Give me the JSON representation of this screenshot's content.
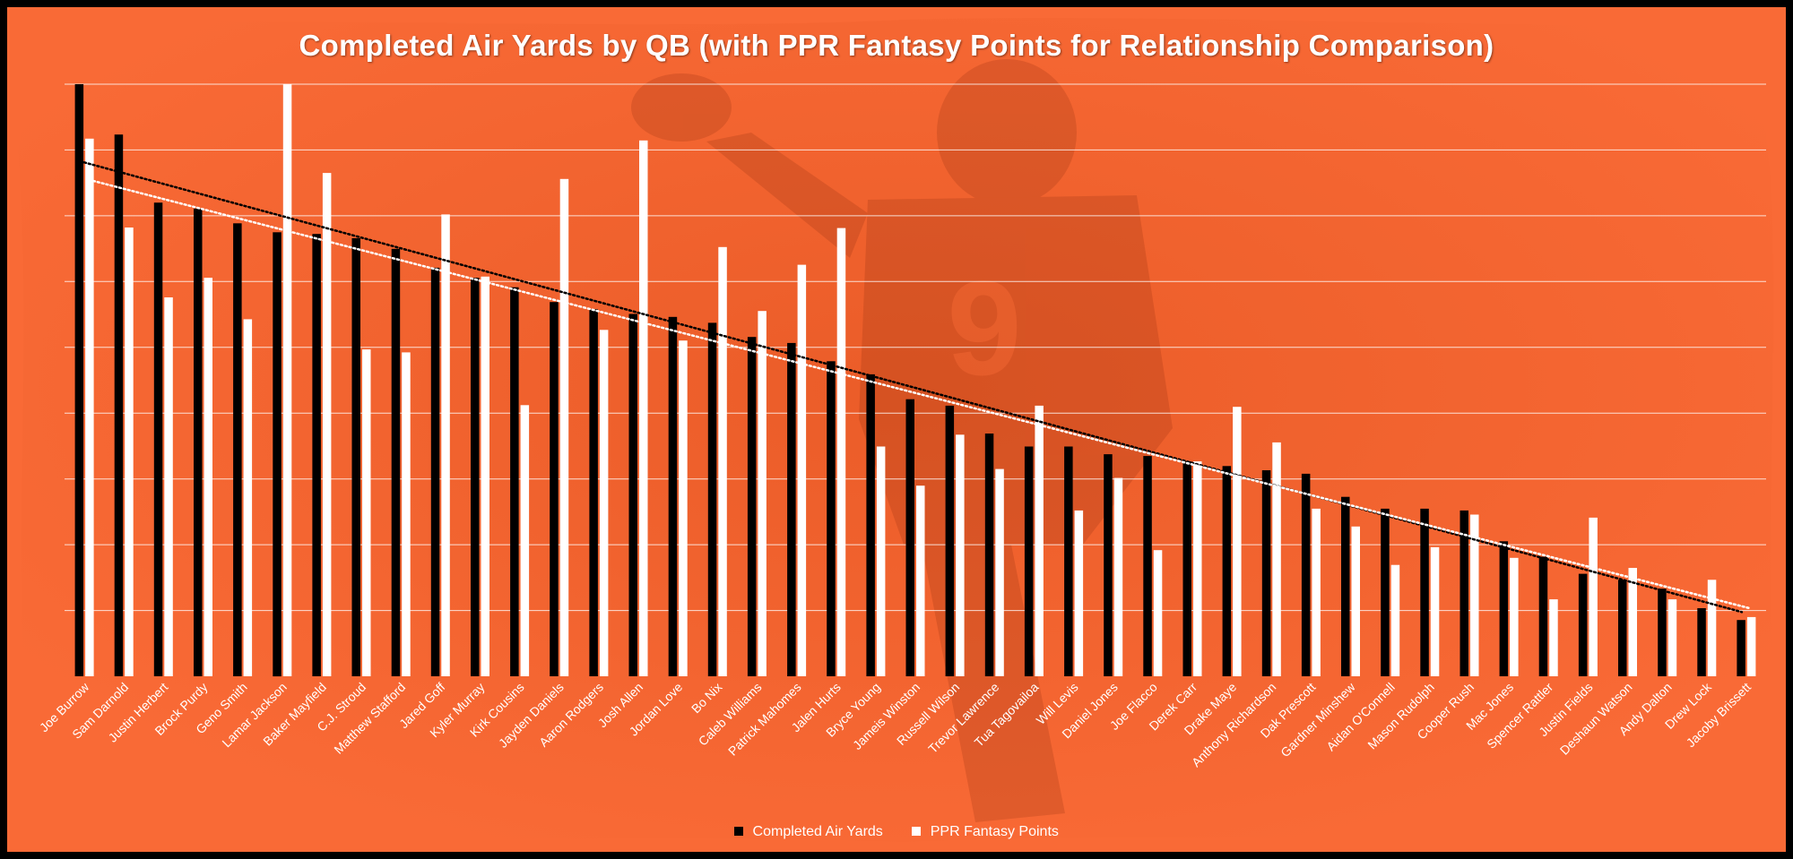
{
  "colors": {
    "background": "#f96a36",
    "frame": "#000000",
    "series_air_yards": "#000000",
    "series_ppr": "#ffffff",
    "gridline": "#ffffff",
    "text": "#ffffff"
  },
  "chart_data": {
    "type": "bar",
    "title": "Completed Air Yards by QB (with PPR Fantasy Points for Relationship Comparison)",
    "xlabel": "",
    "ylabel": "",
    "y_axis_labels_visible": false,
    "gridlines": true,
    "grid_count": 9,
    "legend_position": "bottom",
    "trendlines": "linear, dotted, one per series",
    "categories": [
      "Joe Burrow",
      "Sam Darnold",
      "Justin Herbert",
      "Brock Purdy",
      "Geno Smith",
      "Lamar Jackson",
      "Baker Mayfield",
      "C.J. Stroud",
      "Matthew Stafford",
      "Jared Goff",
      "Kyler Murray",
      "Kirk Cousins",
      "Jayden Daniels",
      "Aaron Rodgers",
      "Josh Allen",
      "Jordan Love",
      "Bo Nix",
      "Caleb Williams",
      "Patrick Mahomes",
      "Jalen Hurts",
      "Bryce Young",
      "Jameis Winston",
      "Russell Wilson",
      "Trevor Lawrence",
      "Tua Tagovailoa",
      "Will Levis",
      "Daniel Jones",
      "Joe Flacco",
      "Derek Carr",
      "Drake Maye",
      "Anthony Richardson",
      "Dak Prescott",
      "Gardner Minshew",
      "Aidan O'Connell",
      "Mason Rudolph",
      "Cooper Rush",
      "Mac Jones",
      "Spencer Rattler",
      "Justin Fields",
      "Deshaun Watson",
      "Andy Dalton",
      "Drew Lock",
      "Jacoby Brissett"
    ],
    "series": [
      {
        "name": "Completed Air Yards",
        "color": "#000000",
        "relative_values": [
          1.0,
          0.915,
          0.8,
          0.79,
          0.765,
          0.75,
          0.747,
          0.74,
          0.722,
          0.69,
          0.673,
          0.657,
          0.632,
          0.62,
          0.612,
          0.607,
          0.597,
          0.573,
          0.563,
          0.532,
          0.51,
          0.468,
          0.457,
          0.41,
          0.388,
          0.388,
          0.375,
          0.372,
          0.363,
          0.355,
          0.348,
          0.342,
          0.303,
          0.283,
          0.283,
          0.28,
          0.228,
          0.202,
          0.173,
          0.163,
          0.148,
          0.115,
          0.095
        ]
      },
      {
        "name": "PPR Fantasy Points",
        "color": "#ffffff",
        "relative_values": [
          0.908,
          0.758,
          0.64,
          0.673,
          0.603,
          1.0,
          0.85,
          0.552,
          0.547,
          0.78,
          0.675,
          0.458,
          0.84,
          0.585,
          0.905,
          0.567,
          0.725,
          0.617,
          0.695,
          0.757,
          0.388,
          0.322,
          0.408,
          0.35,
          0.457,
          0.28,
          0.335,
          0.213,
          0.363,
          0.455,
          0.395,
          0.283,
          0.253,
          0.188,
          0.218,
          0.273,
          0.2,
          0.13,
          0.268,
          0.183,
          0.13,
          0.163,
          0.1
        ]
      }
    ]
  },
  "legend": {
    "items": [
      {
        "label": "Completed Air Yards",
        "color": "#000000"
      },
      {
        "label": "PPR Fantasy Points",
        "color": "#ffffff"
      }
    ]
  }
}
